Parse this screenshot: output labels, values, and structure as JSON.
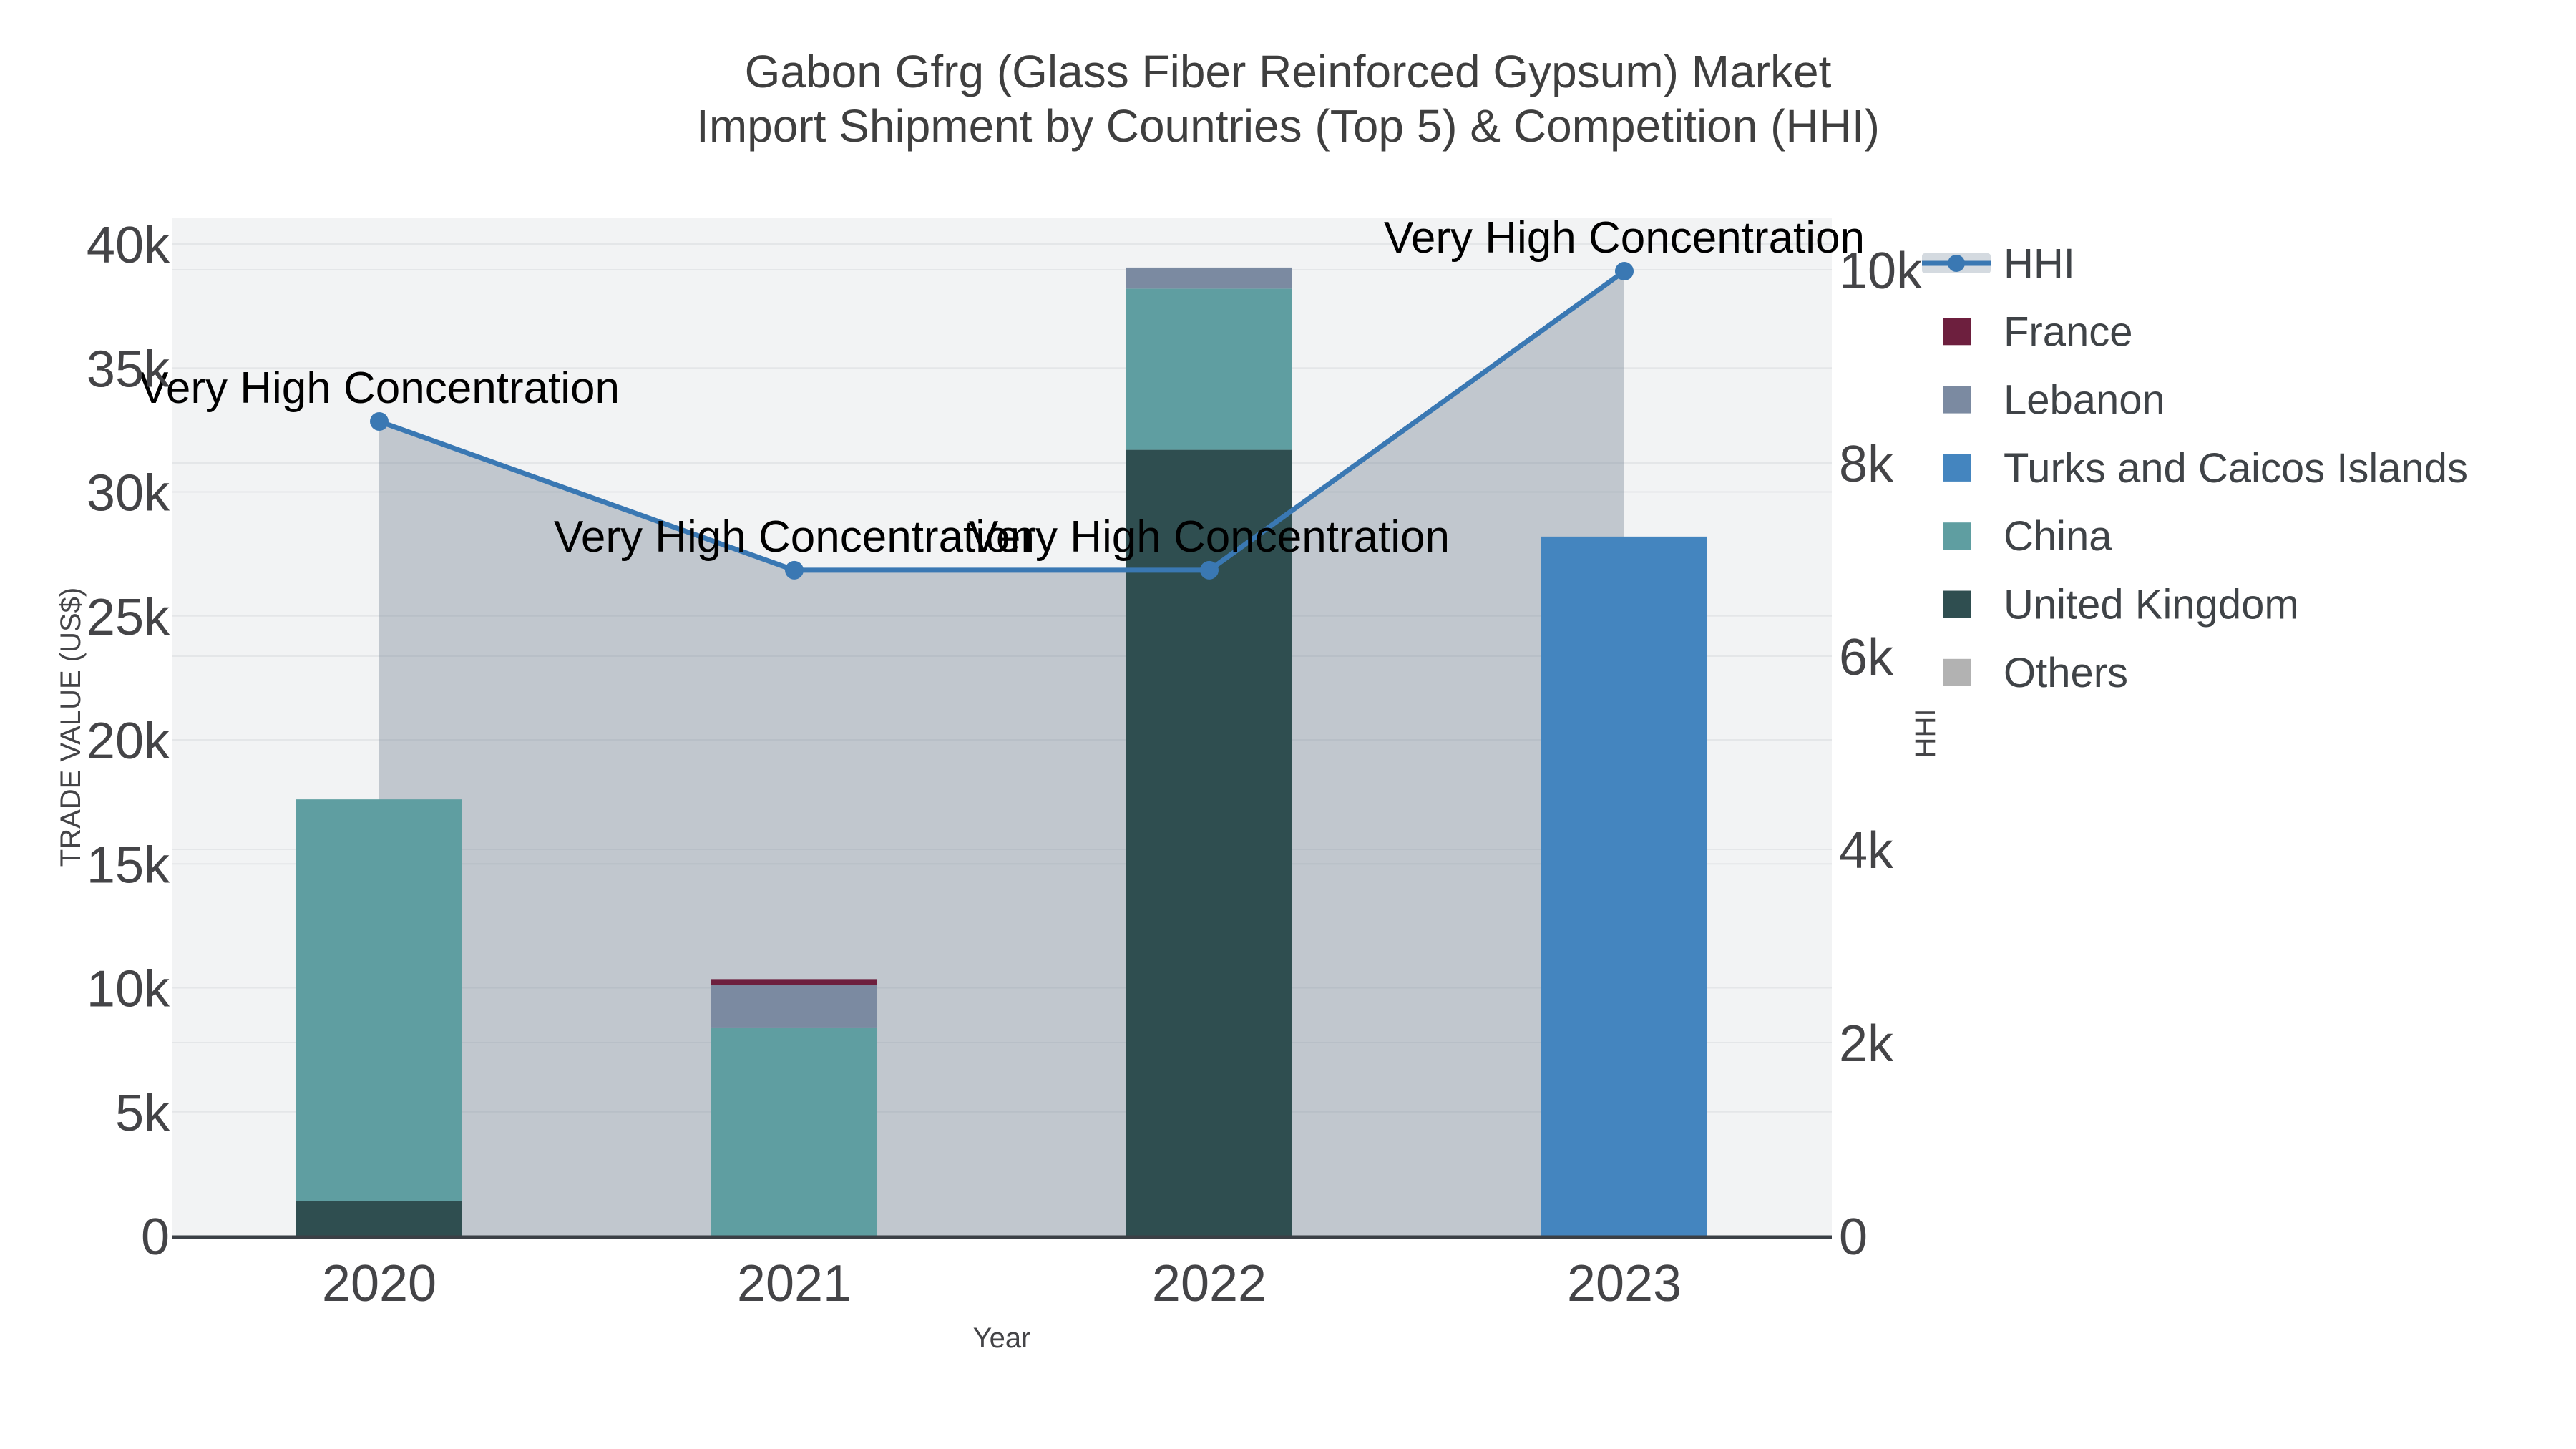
{
  "title": {
    "line1": "Gabon Gfrg (Glass Fiber Reinforced Gypsum) Market",
    "line2": "Import Shipment by Countries (Top 5) & Competition (HHI)"
  },
  "axes": {
    "x": {
      "title": "Year",
      "categories": [
        "2020",
        "2021",
        "2022",
        "2023"
      ]
    },
    "y_left": {
      "title": "TRADE VALUE (US$)",
      "ticks": [
        "0",
        "5k",
        "10k",
        "15k",
        "20k",
        "25k",
        "30k",
        "35k",
        "40k"
      ],
      "range": [
        0,
        40000
      ]
    },
    "y_right": {
      "title": "HHI",
      "ticks": [
        "0",
        "2k",
        "4k",
        "6k",
        "8k",
        "10k"
      ],
      "range": [
        0,
        10000
      ]
    }
  },
  "legend": {
    "items": [
      {
        "label": "HHI",
        "type": "line",
        "color": "#3a78b3",
        "band": "#d4dae0"
      },
      {
        "label": "France",
        "type": "swatch",
        "color": "#6d1f3e"
      },
      {
        "label": "Lebanon",
        "type": "swatch",
        "color": "#7b8aa1"
      },
      {
        "label": "Turks and Caicos Islands",
        "type": "swatch",
        "color": "#4485bf"
      },
      {
        "label": "China",
        "type": "swatch",
        "color": "#5f9ea1"
      },
      {
        "label": "United Kingdom",
        "type": "swatch",
        "color": "#2f4e50"
      },
      {
        "label": "Others",
        "type": "swatch",
        "color": "#b2b2b2"
      }
    ]
  },
  "chart_data": {
    "type": "combo-stacked-bar-line",
    "categories": [
      "2020",
      "2021",
      "2022",
      "2023"
    ],
    "bar_axis": "left",
    "y_left_max": 40000,
    "y_right_max": 10000,
    "series": [
      {
        "name": "United Kingdom",
        "color": "#2f4e50",
        "values": [
          1400,
          0,
          31700,
          0
        ]
      },
      {
        "name": "China",
        "color": "#5f9ea1",
        "values": [
          16200,
          8400,
          6500,
          0
        ]
      },
      {
        "name": "Lebanon",
        "color": "#7b8aa1",
        "values": [
          0,
          1700,
          850,
          0
        ]
      },
      {
        "name": "France",
        "color": "#6d1f3e",
        "values": [
          0,
          250,
          0,
          0
        ]
      },
      {
        "name": "Turks and Caicos Islands",
        "color": "#4485bf",
        "values": [
          0,
          0,
          0,
          28200
        ]
      },
      {
        "name": "Others",
        "color": "#b2b2b2",
        "values": [
          0,
          0,
          0,
          0
        ]
      }
    ],
    "bar_totals": [
      17600,
      10350,
      39050,
      28200
    ],
    "line_series": {
      "name": "HHI",
      "axis": "right",
      "color": "#3a78b3",
      "fill": "rgba(112,128,144,0.38)",
      "values": [
        8430,
        6890,
        6890,
        9985
      ]
    },
    "annotations": [
      "Very High Concentration",
      "Very High Concentration",
      "Very High Concentration",
      "Very High Concentration"
    ],
    "grid": "on",
    "legend_position": "right",
    "plot_background": "#f2f3f4"
  }
}
